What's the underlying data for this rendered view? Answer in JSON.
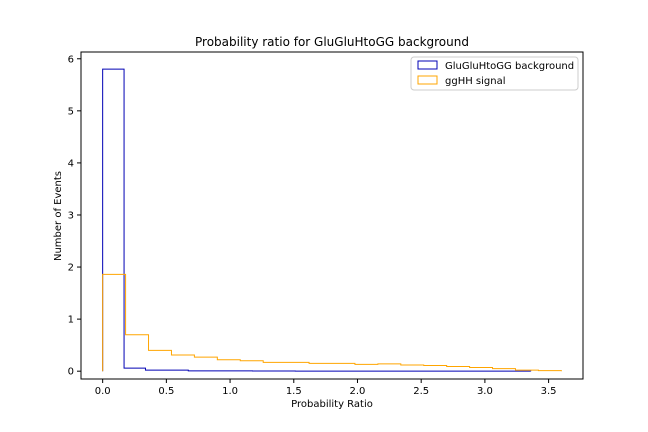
{
  "chart_data": {
    "type": "histogram",
    "title": "Probability ratio for GluGluHtoGG background",
    "xlabel": "Probability Ratio",
    "ylabel": "Number of Events",
    "xlim": [
      -0.17,
      3.77
    ],
    "ylim": [
      -0.15,
      6.13
    ],
    "xticks": [
      0.0,
      0.5,
      1.0,
      1.5,
      2.0,
      2.5,
      3.0,
      3.5
    ],
    "xtick_labels": [
      "0.0",
      "0.5",
      "1.0",
      "1.5",
      "2.0",
      "2.5",
      "3.0",
      "3.5"
    ],
    "yticks": [
      0,
      1,
      2,
      3,
      4,
      5,
      6
    ],
    "ytick_labels": [
      "0",
      "1",
      "2",
      "3",
      "4",
      "5",
      "6"
    ],
    "grid": false,
    "legend_position": "top-right",
    "series": [
      {
        "name": "GluGluHtoGG background",
        "color": "#0000b4",
        "style": "step",
        "bin_edges": [
          0.0,
          0.168,
          0.336,
          0.504,
          0.672,
          0.84,
          1.008,
          1.176,
          1.344,
          1.512,
          1.68,
          1.848,
          2.016,
          2.184,
          2.352,
          2.52,
          2.688,
          2.856,
          3.024,
          3.192,
          3.36
        ],
        "counts": [
          5.8,
          0.06,
          0.02,
          0.02,
          0.005,
          0.005,
          0.005,
          0.003,
          0.003,
          0.002,
          0.002,
          0.002,
          0.002,
          0.002,
          0.002,
          0.002,
          0.002,
          0.001,
          0.001,
          0.001
        ]
      },
      {
        "name": "ggHH signal",
        "color": "#ffa500",
        "style": "step",
        "bin_edges": [
          0.0,
          0.18,
          0.36,
          0.54,
          0.72,
          0.9,
          1.08,
          1.26,
          1.44,
          1.62,
          1.8,
          1.98,
          2.16,
          2.34,
          2.52,
          2.7,
          2.88,
          3.06,
          3.24,
          3.42,
          3.6
        ],
        "counts": [
          1.86,
          0.7,
          0.4,
          0.31,
          0.27,
          0.22,
          0.2,
          0.17,
          0.17,
          0.15,
          0.15,
          0.13,
          0.14,
          0.12,
          0.11,
          0.09,
          0.07,
          0.05,
          0.02,
          0.01
        ]
      }
    ]
  }
}
